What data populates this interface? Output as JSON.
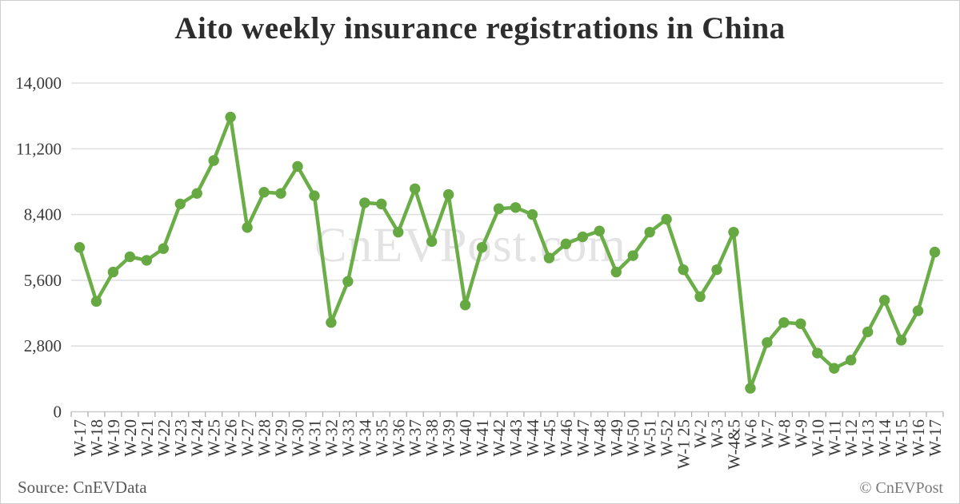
{
  "page": {
    "title": "Aito weekly insurance registrations in China",
    "watermark": "CnEVPost.com",
    "source_label": "Source: CnEVData",
    "copyright_label": "© CnEVPost"
  },
  "chart_data": {
    "type": "line",
    "title": "Aito weekly insurance registrations in China",
    "categories": [
      "W-17",
      "W-18",
      "W-19",
      "W-20",
      "W-21",
      "W-22",
      "W-23",
      "W-24",
      "W-25",
      "W-26",
      "W-27",
      "W-28",
      "W-29",
      "W-30",
      "W-31",
      "W-32",
      "W-33",
      "W-34",
      "W-35",
      "W-36",
      "W-37",
      "W-38",
      "W-39",
      "W-40",
      "W-41",
      "W-42",
      "W-43",
      "W-44",
      "W-45",
      "W-46",
      "W-47",
      "W-48",
      "W-49",
      "W-50",
      "W-51",
      "W-52",
      "W-1 25",
      "W-2",
      "W-3",
      "W-4&5",
      "W-6",
      "W-7",
      "W-8",
      "W-9",
      "W-10",
      "W-11",
      "W-12",
      "W-13",
      "W-14",
      "W-15",
      "W-16",
      "W-17"
    ],
    "values": [
      7000,
      4700,
      5950,
      6600,
      6450,
      6950,
      8850,
      9300,
      10700,
      12550,
      7850,
      9350,
      9300,
      10450,
      9200,
      3800,
      5550,
      8900,
      8850,
      7650,
      9500,
      7250,
      9250,
      4550,
      7000,
      8650,
      8700,
      8400,
      6550,
      7150,
      7450,
      7700,
      5950,
      6650,
      7650,
      8200,
      6050,
      4900,
      6050,
      7650,
      1000,
      2950,
      3800,
      3750,
      2500,
      1850,
      2200,
      3400,
      4750,
      3050,
      4300,
      6800
    ],
    "ylim": [
      0,
      14000
    ],
    "ytick_interval": 2800,
    "ytick_labels": [
      "0",
      "2,800",
      "5,600",
      "8,400",
      "11,200",
      "14,000"
    ],
    "xlabel": "",
    "ylabel": "",
    "grid": true,
    "legend": "none",
    "line_color": "#6bae48",
    "marker_color": "#66a943",
    "gridline_color": "#e0e0e0",
    "axis_line_color": "#c9c9c9",
    "tick_color": "#a9a9a9",
    "axis_text_color": "#3a3a3a",
    "watermark_color": "#e3e3e3"
  }
}
